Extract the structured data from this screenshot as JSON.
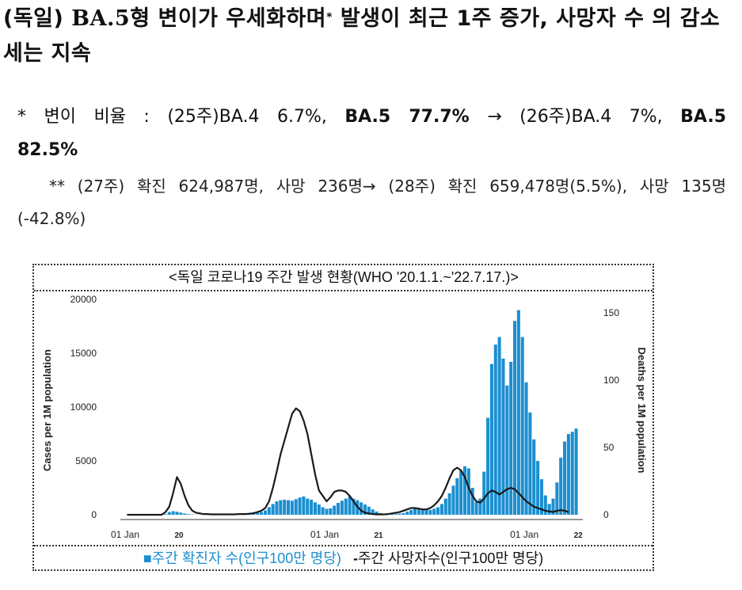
{
  "heading": {
    "part1": "(독일) ",
    "part2": "BA.5",
    "part3": "형 변이가 우세화하며",
    "star": "*",
    "part4": " 발생이 최근 1주 증가, 사망자 수 의 감소세는 지속"
  },
  "note1": {
    "a": "* 변이 비율 : (25주)BA.4 6.7%, ",
    "b": "BA.5 77.7%",
    "c": " → (26주)BA.4 7%, ",
    "d": "BA.5",
    "e": "82.5%"
  },
  "note2": {
    "a": "** (27주) 확진 624,987명, 사망 236명→ (28주) 확진 659,478명(5.5%), 사망 135명",
    "b": "(-42.8%)"
  },
  "chart_title": "<독일 코로나19 주간 발생 현황(WHO '20.1.1.~'22.7.17.)>",
  "legend": {
    "cases_marker": "■",
    "cases_label": "주간 확진자 수(인구100만 명당)",
    "deaths_marker": "-",
    "deaths_label": "주간 사망자수(인구100만 명당)"
  },
  "colors": {
    "bars": "#1b8fd0",
    "line": "#1a1a1a"
  },
  "chart_data": {
    "type": "bar",
    "x_start": "2020-01-01",
    "x_interval": "weekly",
    "x_ticks": [
      {
        "label": "01 Jan",
        "year": "20"
      },
      {
        "label": "01 Jan",
        "year": "21"
      },
      {
        "label": "01 Jan",
        "year": "22"
      }
    ],
    "ylabel": "Cases per 1M population",
    "y2label": "Deaths per 1M population",
    "ylim": [
      0,
      20000
    ],
    "y2lim": [
      0,
      160
    ],
    "yticks": [
      0,
      5000,
      10000,
      15000,
      20000
    ],
    "y2ticks": [
      0,
      50,
      100,
      150
    ],
    "series": [
      {
        "name": "주간 확진자 수(인구100만 명당)",
        "type": "bar",
        "axis": "left",
        "values": [
          0,
          0,
          0,
          0,
          0,
          0,
          0,
          0,
          0,
          0,
          60,
          250,
          330,
          280,
          200,
          120,
          60,
          30,
          20,
          15,
          10,
          10,
          10,
          10,
          15,
          20,
          25,
          30,
          35,
          40,
          50,
          60,
          80,
          120,
          180,
          250,
          400,
          700,
          1000,
          1250,
          1350,
          1400,
          1350,
          1300,
          1450,
          1600,
          1700,
          1500,
          1400,
          1150,
          950,
          700,
          550,
          600,
          850,
          1100,
          1300,
          1500,
          1700,
          1500,
          1350,
          1150,
          950,
          750,
          500,
          300,
          150,
          100,
          80,
          70,
          90,
          110,
          150,
          300,
          450,
          550,
          600,
          520,
          460,
          450,
          560,
          700,
          1000,
          1500,
          2000,
          2700,
          3400,
          4100,
          4500,
          4300,
          2500,
          1200,
          1500,
          4000,
          9000,
          14000,
          15800,
          16500,
          14500,
          12000,
          14200,
          18000,
          19000,
          16500,
          12300,
          9500,
          7000,
          5000,
          3300,
          1800,
          1000,
          1500,
          3000,
          5300,
          6800,
          7500,
          7700,
          8000
        ]
      },
      {
        "name": "주간 사망자수(인구100만 명당)",
        "type": "line",
        "axis": "right",
        "values": [
          0,
          0,
          0,
          0,
          0,
          0,
          0,
          0,
          0,
          0,
          2,
          6,
          16,
          28,
          23,
          14,
          7,
          3,
          1.5,
          1,
          0.5,
          0.5,
          0.3,
          0.3,
          0.3,
          0.3,
          0.3,
          0.3,
          0.3,
          0.5,
          0.5,
          0.5,
          0.8,
          1.2,
          2,
          3,
          5,
          10,
          20,
          32,
          45,
          55,
          65,
          75,
          79,
          77,
          70,
          60,
          45,
          30,
          18,
          14,
          10,
          13,
          17,
          18,
          18,
          17,
          14,
          10,
          6,
          3,
          1.5,
          1,
          0.5,
          0.3,
          0.3,
          0.3,
          0.5,
          1,
          1.5,
          2,
          3,
          4,
          5,
          5,
          4.5,
          4,
          4,
          5,
          7,
          10,
          14,
          20,
          27,
          33,
          35,
          33,
          28,
          20,
          14,
          10,
          9,
          12,
          16,
          18,
          17,
          15,
          17,
          19,
          20,
          19,
          16,
          13,
          10,
          8,
          6,
          5,
          4,
          3,
          2.5,
          2,
          3,
          3.5,
          3,
          2
        ]
      }
    ],
    "grid": false
  }
}
